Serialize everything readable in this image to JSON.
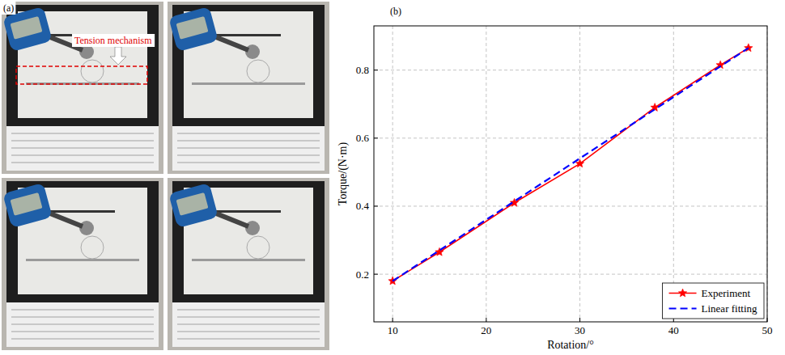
{
  "figure_a": {
    "label": "(a)",
    "annotation": "Tension mechanism"
  },
  "chart_data": {
    "type": "line",
    "panel_label": "(b)",
    "x_label": "Rotation/°",
    "y_label": "Torque/(N·m)",
    "xlim": [
      8,
      50
    ],
    "ylim": [
      0.06,
      0.93
    ],
    "xticks": [
      10,
      20,
      30,
      40,
      50
    ],
    "yticks": [
      0.2,
      0.4,
      0.6,
      0.8
    ],
    "grid": true,
    "legend": "lower right",
    "series": [
      {
        "name": "Experiment",
        "color": "#ff0000",
        "marker": "star",
        "line_style": "solid",
        "x": [
          10,
          15,
          23,
          30,
          38,
          45,
          48
        ],
        "values": [
          0.18,
          0.265,
          0.41,
          0.525,
          0.69,
          0.815,
          0.865
        ]
      },
      {
        "name": "Linear fitting",
        "color": "#0000ff",
        "marker": "none",
        "line_style": "dashed",
        "x": [
          10,
          48
        ],
        "values": [
          0.18,
          0.865
        ]
      }
    ]
  }
}
